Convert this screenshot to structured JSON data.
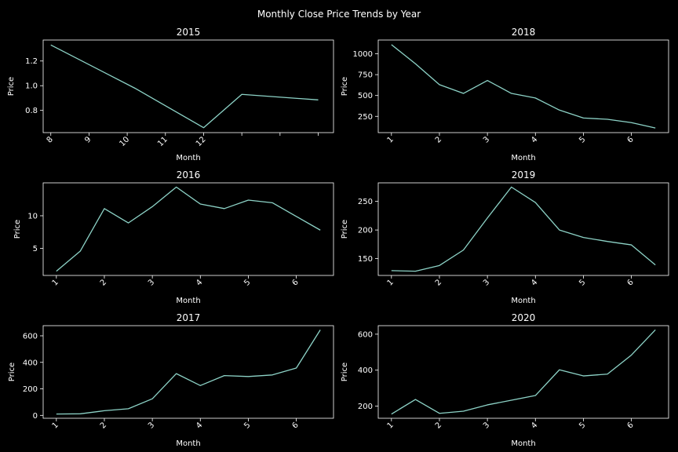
{
  "figure": {
    "title": "Monthly Close Price Trends by Year",
    "background": "#000000",
    "line_color": "#8dd3c7",
    "text_color": "#ffffff"
  },
  "chart_data": [
    {
      "type": "line",
      "title": "2015",
      "xlabel": "Month",
      "ylabel": "Price",
      "x": [
        8,
        10.2,
        12,
        13,
        15
      ],
      "values": [
        1.33,
        0.98,
        0.66,
        0.93,
        0.885
      ],
      "xlim": [
        7.8,
        15.4
      ],
      "ylim": [
        0.62,
        1.37
      ],
      "xticks": [
        8,
        9,
        10,
        11,
        12,
        13,
        14,
        15
      ],
      "xtick_labels": [
        "8",
        "9",
        "10",
        "11",
        "12",
        "",
        "",
        ""
      ],
      "yticks": [
        0.8,
        1.0,
        1.2
      ],
      "ytick_labels": [
        "0.8",
        "1.0",
        "1.2"
      ]
    },
    {
      "type": "line",
      "title": "2018",
      "xlabel": "Month",
      "ylabel": "Price",
      "x": [
        1,
        1.5,
        2,
        2.5,
        3,
        3.5,
        4,
        4.5,
        5,
        5.5,
        6,
        6.5
      ],
      "values": [
        1110,
        880,
        630,
        525,
        680,
        525,
        470,
        325,
        230,
        215,
        175,
        110
      ],
      "xlim": [
        0.725,
        6.775
      ],
      "ylim": [
        55,
        1165
      ],
      "xticks": [
        1,
        2,
        3,
        4,
        5,
        6
      ],
      "xtick_labels": [
        "1",
        "2",
        "3",
        "4",
        "5",
        "6"
      ],
      "yticks": [
        250,
        500,
        750,
        1000
      ],
      "ytick_labels": [
        "250",
        "500",
        "750",
        "1000"
      ]
    },
    {
      "type": "line",
      "title": "2016",
      "xlabel": "Month",
      "ylabel": "Price",
      "x": [
        1,
        1.5,
        2,
        2.5,
        3,
        3.5,
        4,
        4.5,
        5,
        5.5,
        6,
        6.5
      ],
      "values": [
        1.5,
        4.6,
        11.1,
        8.9,
        11.4,
        14.4,
        11.8,
        11.1,
        12.4,
        12.0,
        9.9,
        7.8
      ],
      "xlim": [
        0.725,
        6.775
      ],
      "ylim": [
        0.85,
        15.05
      ],
      "xticks": [
        1,
        2,
        3,
        4,
        5,
        6
      ],
      "xtick_labels": [
        "1",
        "2",
        "3",
        "4",
        "5",
        "6"
      ],
      "yticks": [
        5,
        10
      ],
      "ytick_labels": [
        "5",
        "10"
      ]
    },
    {
      "type": "line",
      "title": "2019",
      "xlabel": "Month",
      "ylabel": "Price",
      "x": [
        1,
        1.5,
        2,
        2.5,
        3,
        3.5,
        4,
        4.5,
        5,
        5.5,
        6,
        6.5
      ],
      "values": [
        129,
        128,
        138,
        165,
        221,
        275,
        248,
        200,
        187,
        180,
        174,
        139
      ],
      "xlim": [
        0.725,
        6.775
      ],
      "ylim": [
        120.65,
        282.35
      ],
      "xticks": [
        1,
        2,
        3,
        4,
        5,
        6
      ],
      "xtick_labels": [
        "1",
        "2",
        "3",
        "4",
        "5",
        "6"
      ],
      "yticks": [
        150,
        200,
        250
      ],
      "ytick_labels": [
        "150",
        "200",
        "250"
      ]
    },
    {
      "type": "line",
      "title": "2017",
      "xlabel": "Month",
      "ylabel": "Price",
      "x": [
        1,
        1.5,
        2,
        2.5,
        3,
        3.5,
        4,
        4.5,
        5,
        5.5,
        6,
        6.5
      ],
      "values": [
        10,
        12,
        35,
        50,
        125,
        315,
        225,
        300,
        293,
        305,
        357,
        645
      ],
      "xlim": [
        0.725,
        6.775
      ],
      "ylim": [
        -21.75,
        676.75
      ],
      "xticks": [
        1,
        2,
        3,
        4,
        5,
        6
      ],
      "xtick_labels": [
        "1",
        "2",
        "3",
        "4",
        "5",
        "6"
      ],
      "yticks": [
        0,
        200,
        400,
        600
      ],
      "ytick_labels": [
        "0",
        "200",
        "400",
        "600"
      ]
    },
    {
      "type": "line",
      "title": "2020",
      "xlabel": "Month",
      "ylabel": "Price",
      "x": [
        1,
        1.5,
        2,
        2.5,
        3,
        3.5,
        4,
        4.5,
        5,
        5.5,
        6,
        6.5
      ],
      "values": [
        156,
        237,
        160,
        172,
        207,
        233,
        259,
        402,
        368,
        378,
        484,
        624
      ],
      "xlim": [
        0.725,
        6.775
      ],
      "ylim": [
        132.6,
        647.4
      ],
      "xticks": [
        1,
        2,
        3,
        4,
        5,
        6
      ],
      "xtick_labels": [
        "1",
        "2",
        "3",
        "4",
        "5",
        "6"
      ],
      "yticks": [
        200,
        400,
        600
      ],
      "ytick_labels": [
        "200",
        "400",
        "600"
      ]
    }
  ]
}
